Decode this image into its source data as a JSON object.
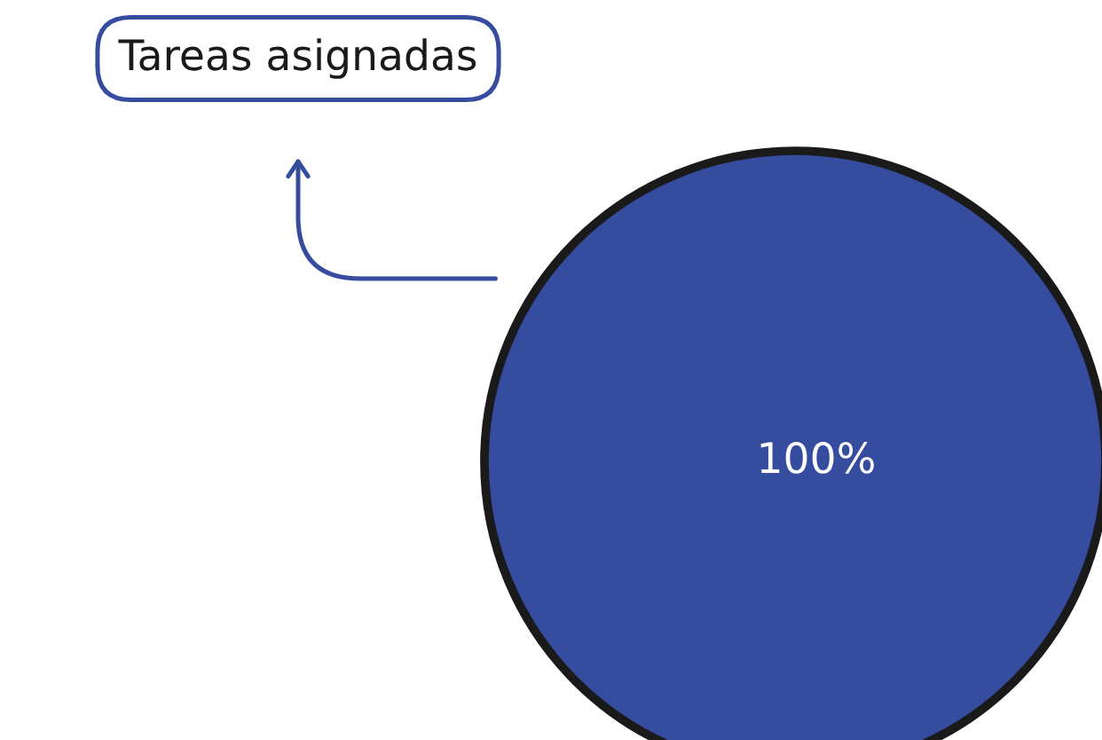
{
  "chart_data": {
    "type": "pie",
    "categories": [
      "Tareas asignadas"
    ],
    "values": [
      100
    ],
    "colors": [
      "#364c9e"
    ],
    "value_labels": [
      "100%"
    ]
  }
}
